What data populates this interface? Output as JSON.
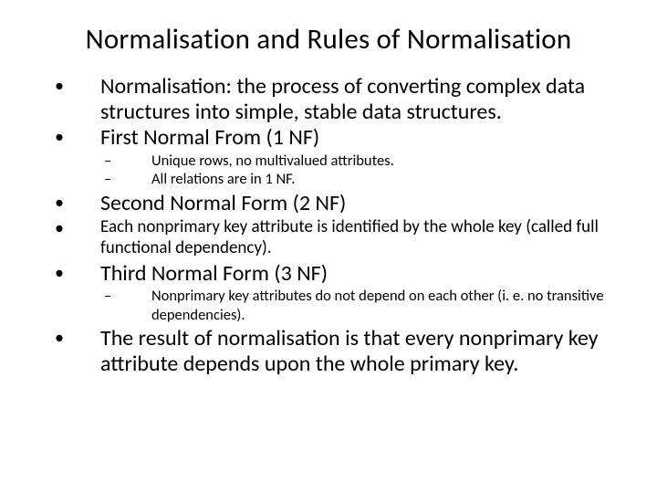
{
  "colors": {
    "background": "#ffffff",
    "text": "#000000"
  },
  "slide": {
    "title": "Normalisation and Rules of Normalisation",
    "title_fontsize": 31,
    "body_fontsize_large": 24,
    "body_fontsize_small": 19,
    "sub_fontsize": 16.5
  },
  "bullets": {
    "b1": "Normalisation: the process of converting complex data structures into simple, stable data structures.",
    "b2": "First Normal From (1 NF)",
    "b2_s1": "Unique rows, no multivalued attributes.",
    "b2_s2": "All relations are in 1 NF.",
    "b3": "Second Normal Form (2 NF)",
    "b4": "Each nonprimary key attribute is identified by the whole key (called full functional dependency).",
    "b5": "Third Normal Form (3 NF)",
    "b5_s1": "Nonprimary key attributes do not depend on each other (i. e. no transitive dependencies).",
    "b6": "The result of normalisation is that every nonprimary key attribute depends upon the whole primary key."
  },
  "glyphs": {
    "dot": "•",
    "dash": "–"
  }
}
